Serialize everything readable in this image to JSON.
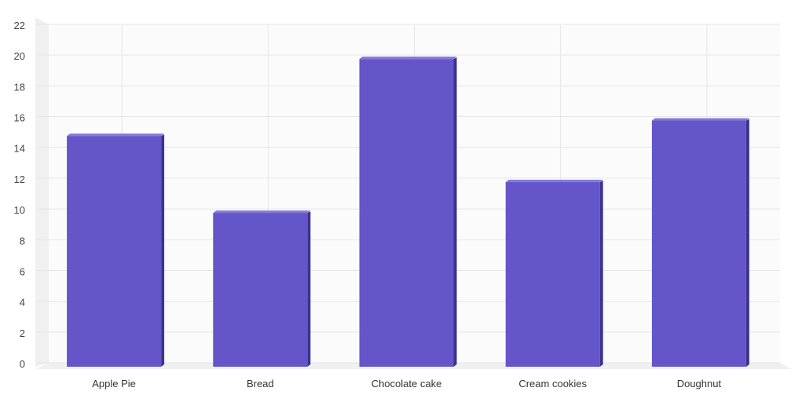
{
  "chart_data": {
    "type": "bar",
    "categories": [
      "Apple Pie",
      "Bread",
      "Chocolate cake",
      "Cream cookies",
      "Doughnut"
    ],
    "series": [
      {
        "values": [
          15,
          10,
          20,
          12,
          16
        ]
      }
    ],
    "ylim": [
      0,
      22
    ],
    "ytick_step": 2,
    "yticks": [
      "0",
      "2",
      "4",
      "6",
      "8",
      "10",
      "12",
      "14",
      "16",
      "18",
      "20",
      "22"
    ],
    "grid": true,
    "style": "3d",
    "colors": {
      "bar_front": "#6455C8",
      "bar_side": "#3D3490",
      "bar_top": "#8478DA",
      "plot_background": "#FBFBFB",
      "grid": "#E6E6E6",
      "wall": "#F0F0F0"
    }
  }
}
